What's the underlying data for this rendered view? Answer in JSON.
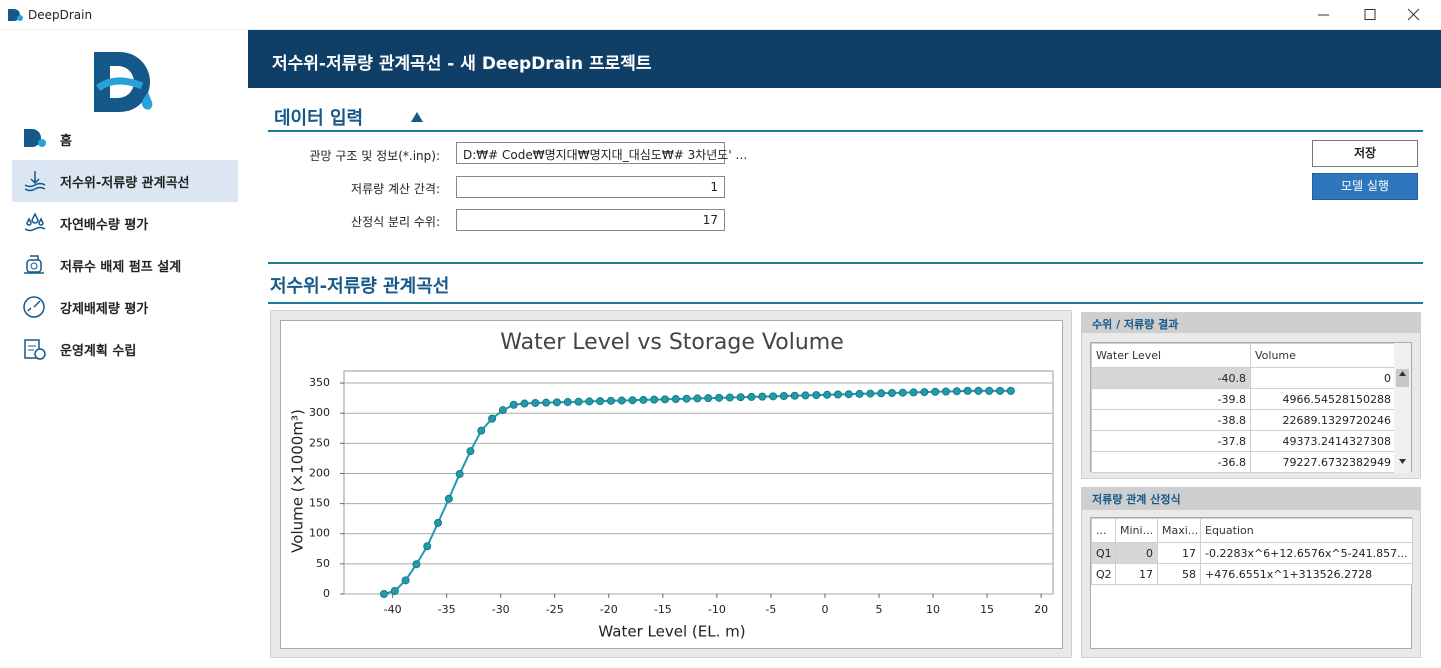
{
  "window": {
    "title": "DeepDrain"
  },
  "sidebar": {
    "items": [
      "홈",
      "저수위-저류량 관계곡선",
      "자연배수량 평가",
      "저류수 배제 펌프 설계",
      "강제배제량 평가",
      "운영계획 수립"
    ]
  },
  "header": {
    "title": "저수위-저류량 관계곡선 - 새 DeepDrain 프로젝트"
  },
  "data_input": {
    "title": "데이터 입력",
    "fields": [
      {
        "label": "관망 구조 및 정보(*.inp):",
        "value": "D:₩# Code₩명지대₩명지대_대심도₩# 3차년도' …"
      },
      {
        "label": "저류량 계산 간격:",
        "value": "1"
      },
      {
        "label": "산정식 분리 수위:",
        "value": "17"
      }
    ],
    "buttons": [
      "저장",
      "모델 실행"
    ]
  },
  "curve_section": {
    "title": "저수위-저류량 관계곡선"
  },
  "chart_data": {
    "type": "line",
    "title": "Water Level vs Storage Volume",
    "x_label": "Water Level (EL. m)",
    "y_label": "Volume (×1000m³)",
    "x": [
      -40.8,
      -39.8,
      -38.8,
      -37.8,
      -36.8,
      -35.8,
      -34.8,
      -33.8,
      -32.8,
      -31.8,
      -30.8,
      -29.8,
      -28.8,
      -27.8,
      -26.8,
      -25.8,
      -24.8,
      -23.8,
      -22.8,
      -21.8,
      -20.8,
      -19.8,
      -18.8,
      -17.8,
      -16.8,
      -15.8,
      -14.8,
      -13.8,
      -12.8,
      -11.8,
      -10.8,
      -9.8,
      -8.8,
      -7.8,
      -6.8,
      -5.8,
      -4.8,
      -3.8,
      -2.8,
      -1.8,
      -0.8,
      0.2,
      1.2,
      2.2,
      3.2,
      4.2,
      5.2,
      6.2,
      7.2,
      8.2,
      9.2,
      10.2,
      11.2,
      12.2,
      13.2,
      14.2,
      15.2,
      16.2,
      17.2
    ],
    "series": [
      {
        "color": "#1f9bab",
        "values": [
          0,
          4.97,
          22.69,
          49.37,
          79.23,
          118,
          158,
          199,
          237,
          271,
          291,
          305,
          314,
          316,
          317,
          317.5,
          318,
          318.5,
          319,
          319.5,
          320,
          320.5,
          321,
          321.5,
          322,
          322.5,
          323,
          323.5,
          324,
          324.5,
          325,
          325.5,
          326,
          326.5,
          327,
          327.5,
          328,
          328.5,
          329,
          329.5,
          330,
          330.5,
          331,
          331.5,
          332,
          332.5,
          333,
          333.5,
          334,
          334.5,
          335,
          335.5,
          336,
          336.5,
          337,
          337,
          337,
          337,
          337
        ]
      }
    ],
    "xlim": [
      -44.5,
      21.1
    ],
    "ylim": [
      0,
      370
    ],
    "xticks": [
      -40,
      -35,
      -30,
      -25,
      -20,
      -15,
      -10,
      -5,
      0,
      5,
      10,
      15,
      20
    ],
    "yticks": [
      0,
      50,
      100,
      150,
      200,
      250,
      300,
      350
    ],
    "grid": true
  },
  "results": {
    "title": "수위 / 저류량 결과",
    "columns": [
      "Water Level",
      "Volume"
    ],
    "rows": [
      [
        "-40.8",
        "0"
      ],
      [
        "-39.8",
        "4966.54528150288"
      ],
      [
        "-38.8",
        "22689.1329720246"
      ],
      [
        "-37.8",
        "49373.2414327308"
      ],
      [
        "-36.8",
        "79227.6732382949"
      ]
    ]
  },
  "equations": {
    "title": "저류량 관계 산정식",
    "columns": [
      "...",
      "Mini...",
      "Maxi...",
      "Equation"
    ],
    "rows": [
      [
        "Q1",
        "0",
        "17",
        "-0.2283x^6+12.6576x^5-241.857..."
      ],
      [
        "Q2",
        "17",
        "58",
        "+476.6551x^1+313526.2728"
      ]
    ]
  }
}
